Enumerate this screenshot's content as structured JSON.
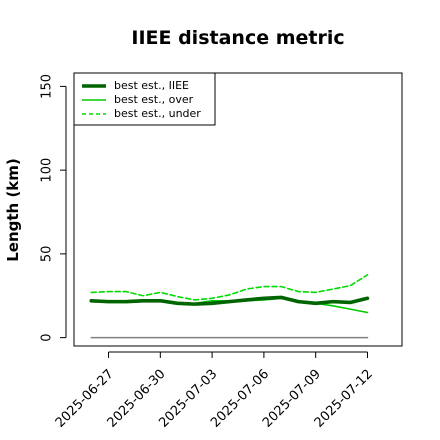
{
  "chart_data": {
    "type": "line",
    "title": "IIEE distance metric",
    "xlabel": "",
    "ylabel": "Length (km)",
    "xlim": [
      "2025-06-25",
      "2025-07-14"
    ],
    "ylim": [
      -5,
      158
    ],
    "x_ticks": [
      "2025-06-27",
      "2025-06-30",
      "2025-07-03",
      "2025-07-06",
      "2025-07-09",
      "2025-07-12"
    ],
    "y_ticks": [
      0,
      50,
      100,
      150
    ],
    "grid": false,
    "legend_position": "top-left",
    "x": [
      "2025-06-26",
      "2025-06-27",
      "2025-06-28",
      "2025-06-29",
      "2025-06-30",
      "2025-07-01",
      "2025-07-02",
      "2025-07-03",
      "2025-07-04",
      "2025-07-05",
      "2025-07-06",
      "2025-07-07",
      "2025-07-08",
      "2025-07-09",
      "2025-07-10",
      "2025-07-11",
      "2025-07-12"
    ],
    "series": [
      {
        "name": "best est., IIEE",
        "color": "#006400",
        "style": "solid-thick",
        "values": [
          22,
          21.5,
          21.5,
          22,
          22,
          20.5,
          20,
          20.5,
          21.5,
          22.5,
          23.5,
          24,
          21.5,
          20.5,
          21.5,
          21,
          23.5
        ]
      },
      {
        "name": "best est., over",
        "color": "#00cc00",
        "style": "solid",
        "values": [
          21.5,
          21,
          21,
          21.5,
          21.5,
          20.5,
          20.5,
          22,
          22,
          22,
          22.5,
          23.5,
          21,
          20.5,
          19,
          17,
          15
        ]
      },
      {
        "name": "best est., under",
        "color": "#00dd00",
        "style": "dashed",
        "values": [
          27,
          27.5,
          27.5,
          25,
          27,
          24.5,
          22.5,
          23.5,
          25.5,
          29,
          30.5,
          30.5,
          27.5,
          27,
          29,
          31,
          37.5
        ]
      },
      {
        "name": "",
        "color": "#808080",
        "style": "solid",
        "values": [
          0,
          0,
          0,
          0,
          0,
          0,
          0,
          0,
          0,
          0,
          0,
          0,
          0,
          0,
          0,
          0,
          0
        ]
      }
    ]
  }
}
